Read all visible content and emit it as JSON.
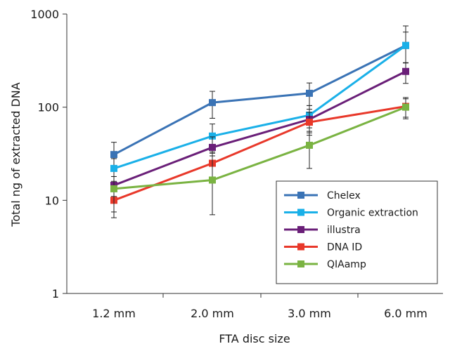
{
  "chart_data": {
    "type": "line",
    "xlabel": "FTA disc size",
    "ylabel": "Total ng of extracted DNA",
    "categories": [
      "1.2 mm",
      "2.0 mm",
      "3.0 mm",
      "6.0 mm"
    ],
    "y_scale": "log",
    "ylim": [
      1,
      1000
    ],
    "y_ticks": [
      1,
      10,
      100,
      1000
    ],
    "y_tick_labels": [
      "1",
      "10",
      "100",
      "1000"
    ],
    "grid": false,
    "legend_position": "bottom-right",
    "series": [
      {
        "name": "Chelex",
        "color": "#3a73b5",
        "values": [
          31,
          112,
          141,
          460
        ],
        "err_low": [
          23,
          76,
          104,
          298
        ],
        "err_high": [
          42,
          148,
          182,
          745
        ]
      },
      {
        "name": "Organic extraction",
        "color": "#1ab0e8",
        "values": [
          22,
          49,
          82,
          460
        ],
        "err_low": [
          16,
          33,
          60,
          300
        ],
        "err_high": [
          28,
          66,
          104,
          640
        ]
      },
      {
        "name": "illustra",
        "color": "#6a1f78",
        "values": [
          14.5,
          37,
          74,
          242
        ],
        "err_low": [
          11,
          26,
          53,
          180
        ],
        "err_high": [
          18,
          48,
          95,
          300
        ]
      },
      {
        "name": "DNA ID",
        "color": "#e8382a",
        "values": [
          10,
          25,
          69,
          102
        ],
        "err_low": [
          7.5,
          17,
          50,
          78
        ],
        "err_high": [
          12.5,
          32,
          88,
          127
        ]
      },
      {
        "name": "QIAamp",
        "color": "#7ab342",
        "values": [
          13.3,
          16.5,
          39,
          100
        ],
        "err_low": [
          6.5,
          7,
          22,
          75
        ],
        "err_high": [
          18,
          30,
          55,
          123
        ]
      }
    ]
  }
}
